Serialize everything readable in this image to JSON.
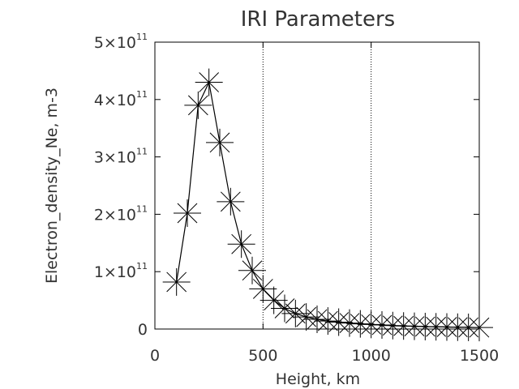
{
  "chart_data": {
    "type": "line",
    "title": "IRI Parameters",
    "xlabel": "Height, km",
    "ylabel": "Electron_density_Ne, m-3",
    "xlim": [
      0,
      1500
    ],
    "ylim": [
      0,
      500000000000.0
    ],
    "x_ticks": [
      0,
      500,
      1000,
      1500
    ],
    "x_tick_labels": [
      "0",
      "500",
      "1000",
      "1500"
    ],
    "y_ticks": [
      0,
      100000000000.0,
      200000000000.0,
      300000000000.0,
      400000000000.0,
      500000000000.0
    ],
    "y_tick_labels": [
      {
        "base": "0",
        "exp": ""
      },
      {
        "base": "1×10",
        "exp": "11"
      },
      {
        "base": "2×10",
        "exp": "11"
      },
      {
        "base": "3×10",
        "exp": "11"
      },
      {
        "base": "4×10",
        "exp": "11"
      },
      {
        "base": "5×10",
        "exp": "11"
      }
    ],
    "vertical_reference_lines": [
      500,
      1000
    ],
    "marker": "asterisk",
    "grid": false,
    "legend": "none",
    "series": [
      {
        "x": [
          100,
          150,
          200,
          250,
          300,
          350,
          400,
          450,
          500,
          550,
          600,
          650,
          700,
          750,
          800,
          850,
          900,
          950,
          1000,
          1050,
          1100,
          1150,
          1200,
          1250,
          1300,
          1350,
          1400,
          1450,
          1500
        ],
        "y": [
          82000000000.0,
          202000000000.0,
          390000000000.0,
          430000000000.0,
          325000000000.0,
          222000000000.0,
          148000000000.0,
          102000000000.0,
          70000000000.0,
          50000000000.0,
          36000000000.0,
          27000000000.0,
          21000000000.0,
          17000000000.0,
          14000000000.0,
          12000000000.0,
          10500000000.0,
          9000000000.0,
          8000000000.0,
          7000000000.0,
          6000000000.0,
          5300000000.0,
          4800000000.0,
          4300000000.0,
          3900000000.0,
          3500000000.0,
          3200000000.0,
          2900000000.0,
          2600000000.0
        ]
      }
    ]
  }
}
